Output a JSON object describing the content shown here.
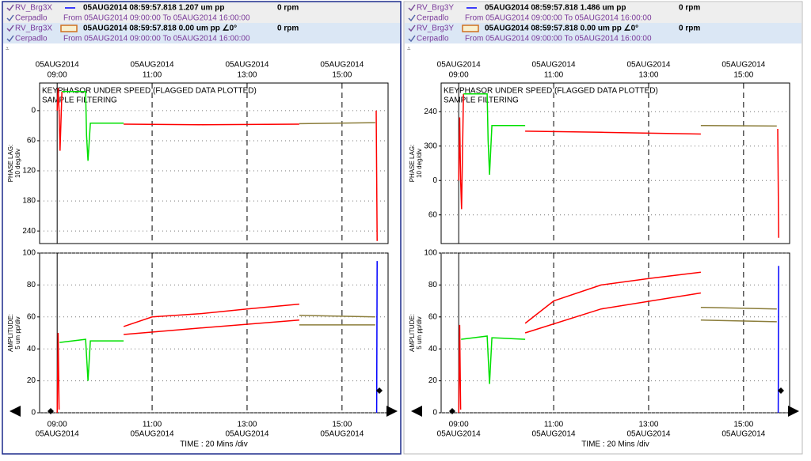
{
  "panels": [
    {
      "legend": [
        {
          "channel": "RV_Brg3X",
          "info": "05AUG2014 08:59:57.818  1.207 um pp",
          "rpm": "0 rpm"
        },
        {
          "channel": "Cerpadlo",
          "info": "From 05AUG2014 09:00:00 To 05AUG2014 16:00:00"
        },
        {
          "channel": "RV_Brg3X",
          "info": "05AUG2014 08:59:57.818  0.00 um pp ∠0°",
          "rpm": "0 rpm"
        },
        {
          "channel": "Cerpadlo",
          "info": "From 05AUG2014 09:00:00 To 05AUG2014 16:00:00"
        }
      ],
      "x_date": "05AUG2014",
      "xlim": [
        8.63,
        15.97
      ],
      "xticks": [
        {
          "value": 9,
          "label": "09:00"
        },
        {
          "value": 11,
          "label": "11:00"
        },
        {
          "value": 13,
          "label": "13:00"
        },
        {
          "value": 15,
          "label": "15:00"
        }
      ],
      "x_title": "TIME : 20 Mins /div",
      "phase": {
        "notes": [
          "KEYPHASOR UNDER SPEED (FLAGGED DATA PLOTTED)",
          "SAMPLE FILTERING"
        ],
        "ylabel": [
          "PHASE LAG:",
          "10 deg/div"
        ],
        "ylim": [
          -55,
          265
        ],
        "yticks": [
          0,
          60,
          120,
          180,
          240
        ],
        "series": [
          {
            "color": "#ff0000",
            "x": [
              9.0,
              9.02,
              9.04,
              9.06,
              9.1
            ],
            "values": [
              0,
              -45,
              0,
              80,
              -38
            ]
          },
          {
            "color": "#00e000",
            "x": [
              9.1,
              9.6,
              9.62,
              9.65,
              9.7,
              10.4
            ],
            "values": [
              -38,
              -38,
              50,
              100,
              25,
              25
            ]
          },
          {
            "color": "#ff0000",
            "x": [
              10.4,
              12,
              14.1
            ],
            "values": [
              27,
              28,
              27
            ]
          },
          {
            "color": "#8b7d3a",
            "x": [
              14.1,
              15.7
            ],
            "values": [
              26,
              24
            ]
          },
          {
            "color": "#ff0000",
            "x": [
              15.72,
              15.74
            ],
            "values": [
              0,
              260
            ]
          }
        ]
      },
      "amplitude": {
        "ylabel": [
          "AMPLITUDE:",
          "5 um pp/div"
        ],
        "ylim": [
          0,
          100
        ],
        "yticks": [
          0,
          20,
          40,
          60,
          80,
          100
        ],
        "series": [
          {
            "color": "#ff0000",
            "x": [
              9.0,
              9.02,
              9.04
            ],
            "values": [
              0,
              50,
              2
            ]
          },
          {
            "color": "#00e000",
            "x": [
              9.05,
              9.6,
              9.65,
              9.7,
              10.4
            ],
            "values": [
              44,
              46,
              20,
              45,
              45
            ]
          },
          {
            "color": "#ff0000",
            "x": [
              10.4,
              11,
              12,
              13,
              14.1
            ],
            "values": [
              54,
              60,
              62,
              65,
              68
            ]
          },
          {
            "color": "#ff0000",
            "x": [
              10.4,
              12,
              14.1
            ],
            "values": [
              49,
              53,
              58
            ]
          },
          {
            "color": "#8b7d3a",
            "x": [
              14.1,
              15.7
            ],
            "values": [
              61,
              60
            ]
          },
          {
            "color": "#8b7d3a",
            "x": [
              14.1,
              15.7
            ],
            "values": [
              55,
              55
            ]
          },
          {
            "color": "#0000ff",
            "x": [
              15.73,
              15.74
            ],
            "values": [
              0,
              95
            ]
          }
        ]
      }
    },
    {
      "legend": [
        {
          "channel": "RV_Brg3Y",
          "info": "05AUG2014 08:59:57.818  1.486 um pp",
          "rpm": "0 rpm"
        },
        {
          "channel": "Cerpadlo",
          "info": "From 05AUG2014 09:00:00 To 05AUG2014 16:00:00"
        },
        {
          "channel": "RV_Brg3Y",
          "info": "05AUG2014 08:59:57.818  0.00 um pp ∠0°",
          "rpm": "0 rpm"
        },
        {
          "channel": "Cerpadlo",
          "info": "From 05AUG2014 09:00:00 To 05AUG2014 16:00:00"
        }
      ],
      "x_date": "05AUG2014",
      "xlim": [
        8.63,
        15.97
      ],
      "xticks": [
        {
          "value": 9,
          "label": "09:00"
        },
        {
          "value": 11,
          "label": "11:00"
        },
        {
          "value": 13,
          "label": "13:00"
        },
        {
          "value": 15,
          "label": "15:00"
        }
      ],
      "x_title": "TIME : 20 Mins /div",
      "phase": {
        "notes": [
          "KEYPHASOR UNDER SPEED (FLAGGED DATA PLOTTED)",
          "SAMPLE FILTERING"
        ],
        "ylabel": [
          "PHASE LAG:",
          "10 deg/div"
        ],
        "ylim": [
          190,
          470
        ],
        "yticks": [
          240,
          300,
          {
            "value": 360,
            "label": "0"
          },
          {
            "value": 420,
            "label": "60"
          }
        ],
        "series": [
          {
            "color": "#ff0000",
            "x": [
              9.0,
              9.02,
              9.04,
              9.06,
              9.1
            ],
            "values": [
              360,
              250,
              360,
              410,
              209
            ]
          },
          {
            "color": "#00e000",
            "x": [
              9.1,
              9.6,
              9.62,
              9.65,
              9.7,
              10.4
            ],
            "values": [
              209,
              209,
              290,
              350,
              264,
              264
            ]
          },
          {
            "color": "#ff0000",
            "x": [
              10.4,
              12,
              14.1
            ],
            "values": [
              274,
              276,
              279
            ]
          },
          {
            "color": "#8b7d3a",
            "x": [
              14.1,
              15.7
            ],
            "values": [
              264,
              265
            ]
          },
          {
            "color": "#ff0000",
            "x": [
              15.72,
              15.74
            ],
            "values": [
              270,
              460
            ]
          }
        ]
      },
      "amplitude": {
        "ylabel": [
          "AMPLITUDE:",
          "5 um pp/div"
        ],
        "ylim": [
          0,
          100
        ],
        "yticks": [
          0,
          20,
          40,
          60,
          80,
          100
        ],
        "series": [
          {
            "color": "#ff0000",
            "x": [
              9.0,
              9.02,
              9.04
            ],
            "values": [
              0,
              55,
              2
            ]
          },
          {
            "color": "#00e000",
            "x": [
              9.05,
              9.6,
              9.65,
              9.7,
              10.4
            ],
            "values": [
              46,
              48,
              18,
              47,
              46
            ]
          },
          {
            "color": "#ff0000",
            "x": [
              10.4,
              11,
              12,
              13,
              14.1
            ],
            "values": [
              56,
              70,
              80,
              84,
              88
            ]
          },
          {
            "color": "#ff0000",
            "x": [
              10.4,
              12,
              14.1
            ],
            "values": [
              50,
              65,
              75
            ]
          },
          {
            "color": "#8b7d3a",
            "x": [
              14.1,
              15.7
            ],
            "values": [
              66,
              65
            ]
          },
          {
            "color": "#8b7d3a",
            "x": [
              14.1,
              15.7
            ],
            "values": [
              58,
              57
            ]
          },
          {
            "color": "#0000ff",
            "x": [
              15.73,
              15.74
            ],
            "values": [
              0,
              92
            ]
          }
        ]
      }
    }
  ]
}
